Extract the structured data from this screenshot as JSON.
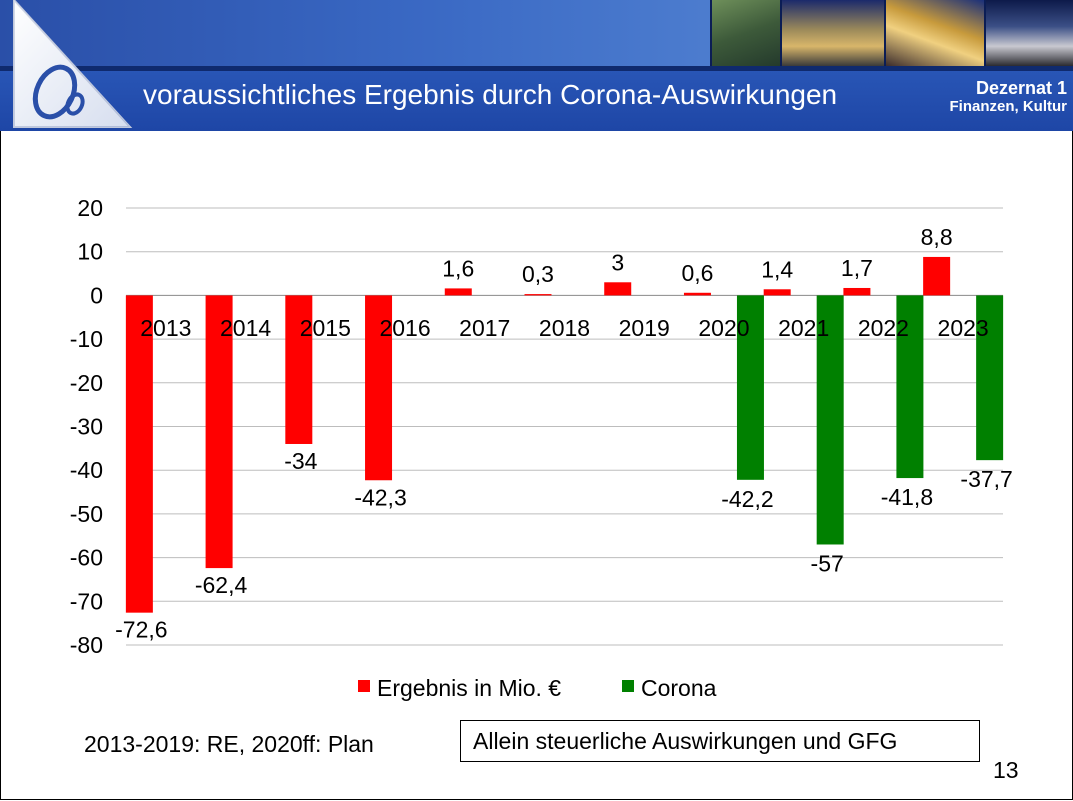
{
  "header": {
    "title": "voraussichtliches Ergebnis durch Corona-Auswirkungen",
    "dept_line1": "Dezernat 1",
    "dept_line2": "Finanzen, Kultur"
  },
  "colors": {
    "result": "#ff0000",
    "corona": "#008000",
    "header_blue": "#1e46a6"
  },
  "chart_data": {
    "type": "bar",
    "categories": [
      "2013",
      "2014",
      "2015",
      "2016",
      "2017",
      "2018",
      "2019",
      "2020",
      "2021",
      "2022",
      "2023"
    ],
    "series": [
      {
        "name": "Ergebnis in Mio. €",
        "color": "#ff0000",
        "values": [
          -72.6,
          -62.4,
          -34,
          -42.3,
          1.6,
          0.3,
          3,
          0.6,
          1.4,
          1.7,
          8.8
        ],
        "labels": [
          "-72,6",
          "-62,4",
          "-34",
          "-42,3",
          "1,6",
          "0,3",
          "3",
          "0,6",
          "1,4",
          "1,7",
          "8,8"
        ]
      },
      {
        "name": "Corona",
        "color": "#008000",
        "values": [
          null,
          null,
          null,
          null,
          null,
          null,
          null,
          -42.2,
          -57,
          -41.8,
          -37.7
        ],
        "labels": [
          "",
          "",
          "",
          "",
          "",
          "",
          "",
          "-42,2",
          "-57",
          "-41,8",
          "-37,7"
        ]
      }
    ],
    "yticks": [
      20,
      10,
      0,
      -10,
      -20,
      -30,
      -40,
      -50,
      -60,
      -70,
      -80
    ],
    "ytick_labels": [
      "20",
      "10",
      "0",
      "-10",
      "-20",
      "-30",
      "-40",
      "-50",
      "-60",
      "-70",
      "-80"
    ],
    "ylim": [
      -80,
      20
    ],
    "grid": true,
    "legend": "bottom"
  },
  "footer": {
    "note_left": "2013-2019: RE, 2020ff: Plan",
    "note_box": "Allein steuerliche Auswirkungen und GFG",
    "page": "13"
  }
}
